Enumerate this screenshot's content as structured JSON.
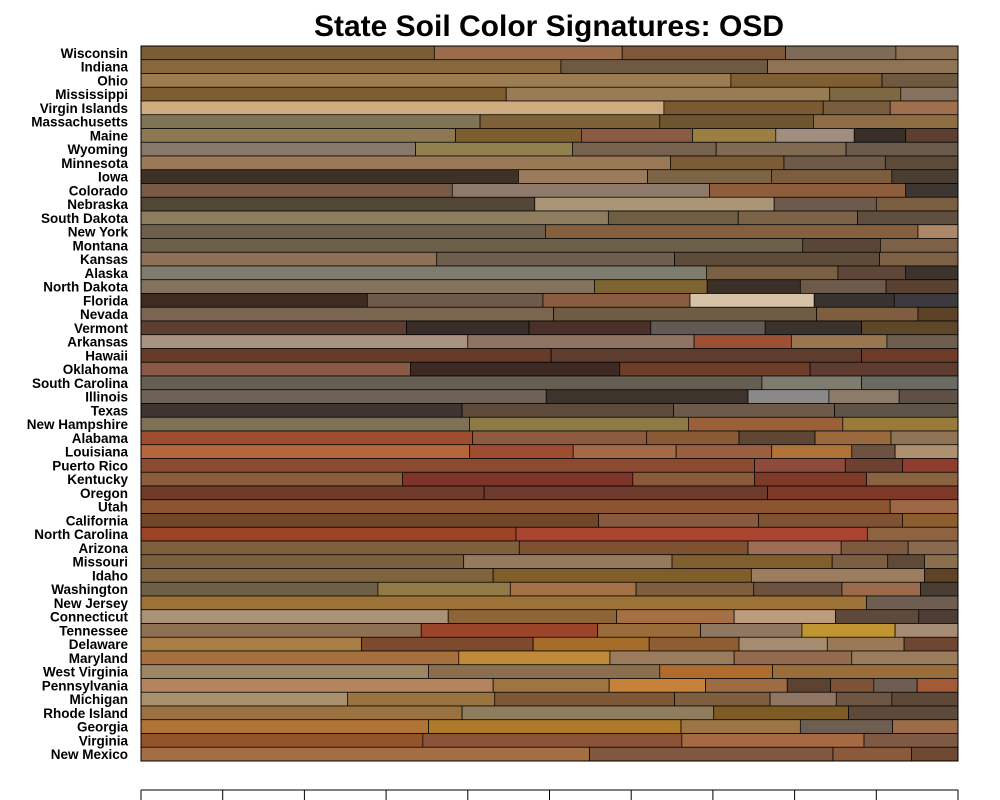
{
  "chart_data": {
    "type": "bar",
    "orientation": "horizontal",
    "stacked": true,
    "title": "State Soil Color Signatures: OSD",
    "xlabel": "",
    "ylabel": "",
    "xlim": [
      0,
      1
    ],
    "grid": false,
    "legend": "none",
    "rows": [
      {
        "label": "Wisconsin",
        "segments": [
          [
            0.359,
            "#7a5c35"
          ],
          [
            0.23,
            "#9a6c4c"
          ],
          [
            0.2,
            "#7e5838"
          ],
          [
            0.135,
            "#7d6b58"
          ],
          [
            0.076,
            "#8c7256"
          ]
        ]
      },
      {
        "label": "Indiana",
        "segments": [
          [
            0.514,
            "#86683c"
          ],
          [
            0.253,
            "#6e5a42"
          ],
          [
            0.233,
            "#8e7354"
          ]
        ]
      },
      {
        "label": "Ohio",
        "segments": [
          [
            0.722,
            "#9c7c50"
          ],
          [
            0.185,
            "#7e5e32"
          ],
          [
            0.093,
            "#6e5a40"
          ]
        ]
      },
      {
        "label": "Mississippi",
        "segments": [
          [
            0.447,
            "#7e5e30"
          ],
          [
            0.396,
            "#9a7c54"
          ],
          [
            0.087,
            "#7e6844"
          ],
          [
            0.07,
            "#84725e"
          ]
        ]
      },
      {
        "label": "Virgin Islands",
        "segments": [
          [
            0.64,
            "#cfac80"
          ],
          [
            0.195,
            "#7c5a30"
          ],
          [
            0.082,
            "#7a5c3e"
          ],
          [
            0.083,
            "#a0704e"
          ]
        ]
      },
      {
        "label": "Massachusetts",
        "segments": [
          [
            0.415,
            "#7e7456"
          ],
          [
            0.22,
            "#7e6136"
          ],
          [
            0.188,
            "#6e5530"
          ],
          [
            0.177,
            "#8e6c44"
          ]
        ]
      },
      {
        "label": "Maine",
        "segments": [
          [
            0.385,
            "#8e7854"
          ],
          [
            0.154,
            "#7e5e2e"
          ],
          [
            0.136,
            "#8a5a42"
          ],
          [
            0.102,
            "#9c7e42"
          ],
          [
            0.096,
            "#a28e80"
          ],
          [
            0.063,
            "#3a2e28"
          ],
          [
            0.064,
            "#5e3e2e"
          ]
        ]
      },
      {
        "label": "Wyoming",
        "segments": [
          [
            0.336,
            "#86786a"
          ],
          [
            0.192,
            "#92804e"
          ],
          [
            0.176,
            "#76624e"
          ],
          [
            0.159,
            "#806a52"
          ],
          [
            0.137,
            "#6a5a4a"
          ]
        ]
      },
      {
        "label": "Minnesota",
        "segments": [
          [
            0.648,
            "#9a7a56"
          ],
          [
            0.139,
            "#7c5c36"
          ],
          [
            0.124,
            "#6e5a46"
          ],
          [
            0.089,
            "#5e4a3a"
          ]
        ]
      },
      {
        "label": "Iowa",
        "segments": [
          [
            0.462,
            "#3e3226"
          ],
          [
            0.158,
            "#9a7c5c"
          ],
          [
            0.152,
            "#7c6446"
          ],
          [
            0.147,
            "#7c5e3e"
          ],
          [
            0.081,
            "#4a3e32"
          ]
        ]
      },
      {
        "label": "Colorado",
        "segments": [
          [
            0.381,
            "#7a5a44"
          ],
          [
            0.315,
            "#8e7a6a"
          ],
          [
            0.24,
            "#8e5e3c"
          ],
          [
            0.064,
            "#3e3632"
          ]
        ]
      },
      {
        "label": "Nebraska",
        "segments": [
          [
            0.482,
            "#524636"
          ],
          [
            0.293,
            "#ac9476"
          ],
          [
            0.125,
            "#6e5a4c"
          ],
          [
            0.1,
            "#7a5e42"
          ]
        ]
      },
      {
        "label": "South Dakota",
        "segments": [
          [
            0.572,
            "#8e7c5e"
          ],
          [
            0.159,
            "#6e5e42"
          ],
          [
            0.146,
            "#7c6246"
          ],
          [
            0.123,
            "#5e4e3e"
          ]
        ]
      },
      {
        "label": "New York",
        "segments": [
          [
            0.495,
            "#6e5e4c"
          ],
          [
            0.456,
            "#84603e"
          ],
          [
            0.049,
            "#ac8868"
          ]
        ]
      },
      {
        "label": "Montana",
        "segments": [
          [
            0.81,
            "#6c6048"
          ],
          [
            0.095,
            "#5a4636"
          ],
          [
            0.095,
            "#7c6048"
          ]
        ]
      },
      {
        "label": "Kansas",
        "segments": [
          [
            0.362,
            "#8e7054"
          ],
          [
            0.291,
            "#6e5e4e"
          ],
          [
            0.251,
            "#5e4c3a"
          ],
          [
            0.096,
            "#7e6044"
          ]
        ]
      },
      {
        "label": "Alaska",
        "segments": [
          [
            0.692,
            "#7e7c6e"
          ],
          [
            0.161,
            "#7a6042"
          ],
          [
            0.083,
            "#5e4638"
          ],
          [
            0.064,
            "#3e322c"
          ]
        ]
      },
      {
        "label": "North Dakota",
        "segments": [
          [
            0.555,
            "#82725e"
          ],
          [
            0.138,
            "#7e6432"
          ],
          [
            0.114,
            "#3a3028"
          ],
          [
            0.105,
            "#6e5a4a"
          ],
          [
            0.088,
            "#5a4232"
          ]
        ]
      },
      {
        "label": "Florida",
        "segments": [
          [
            0.277,
            "#3e2c22"
          ],
          [
            0.215,
            "#6e5a4a"
          ],
          [
            0.18,
            "#8a5c40"
          ],
          [
            0.152,
            "#d6c2a6"
          ],
          [
            0.098,
            "#3a3230"
          ],
          [
            0.078,
            "#3c3a3e"
          ]
        ]
      },
      {
        "label": "Nevada",
        "segments": [
          [
            0.505,
            "#7a6650"
          ],
          [
            0.322,
            "#6e5c44"
          ],
          [
            0.124,
            "#7e5e3e"
          ],
          [
            0.049,
            "#5e4228"
          ]
        ]
      },
      {
        "label": "Vermont",
        "segments": [
          [
            0.325,
            "#5e3e30"
          ],
          [
            0.15,
            "#3a2c26"
          ],
          [
            0.149,
            "#4a3028"
          ],
          [
            0.14,
            "#625a52"
          ],
          [
            0.118,
            "#3a322c"
          ],
          [
            0.118,
            "#5e4628"
          ]
        ]
      },
      {
        "label": "Arkansas",
        "segments": [
          [
            0.4,
            "#a89280"
          ],
          [
            0.277,
            "#8e7462"
          ],
          [
            0.119,
            "#9c5034"
          ],
          [
            0.117,
            "#9a7650"
          ],
          [
            0.087,
            "#6e5e4e"
          ]
        ]
      },
      {
        "label": "Hawaii",
        "segments": [
          [
            0.502,
            "#663c28"
          ],
          [
            0.38,
            "#5e3c2e"
          ],
          [
            0.118,
            "#6e3c26"
          ]
        ]
      },
      {
        "label": "Oklahoma",
        "segments": [
          [
            0.33,
            "#8a5a46"
          ],
          [
            0.256,
            "#3e2a22"
          ],
          [
            0.233,
            "#6e3e28"
          ],
          [
            0.181,
            "#5e3c30"
          ]
        ]
      },
      {
        "label": "South Carolina",
        "segments": [
          [
            0.76,
            "#665e52"
          ],
          [
            0.122,
            "#7e7c6e"
          ],
          [
            0.118,
            "#6a6a62"
          ]
        ]
      },
      {
        "label": "Illinois",
        "segments": [
          [
            0.496,
            "#6e6258"
          ],
          [
            0.247,
            "#3e342e"
          ],
          [
            0.099,
            "#8a8888"
          ],
          [
            0.086,
            "#8e7c6a"
          ],
          [
            0.072,
            "#5e5046"
          ]
        ]
      },
      {
        "label": "Texas",
        "segments": [
          [
            0.393,
            "#3e3430"
          ],
          [
            0.259,
            "#5e4a3a"
          ],
          [
            0.197,
            "#6e5a4a"
          ],
          [
            0.151,
            "#5e5448"
          ]
        ]
      },
      {
        "label": "New Hampshire",
        "segments": [
          [
            0.402,
            "#7e7256"
          ],
          [
            0.268,
            "#8e7a46"
          ],
          [
            0.189,
            "#9a603a"
          ],
          [
            0.141,
            "#9a7a3a"
          ]
        ]
      },
      {
        "label": "Alabama",
        "segments": [
          [
            0.406,
            "#9c4e2e"
          ],
          [
            0.213,
            "#8e5a3e"
          ],
          [
            0.113,
            "#8a5a34"
          ],
          [
            0.093,
            "#5e4632"
          ],
          [
            0.093,
            "#9a6a3e"
          ],
          [
            0.082,
            "#8e7454"
          ]
        ]
      },
      {
        "label": "Louisiana",
        "segments": [
          [
            0.402,
            "#b4683a"
          ],
          [
            0.127,
            "#9e4e2e"
          ],
          [
            0.126,
            "#a46a46"
          ],
          [
            0.117,
            "#9a5e40"
          ],
          [
            0.098,
            "#b07236"
          ],
          [
            0.053,
            "#6e5240"
          ],
          [
            0.077,
            "#ac9070"
          ]
        ]
      },
      {
        "label": "Puerto Rico",
        "segments": [
          [
            0.751,
            "#8c4a30"
          ],
          [
            0.111,
            "#8e4a3a"
          ],
          [
            0.07,
            "#6e4030"
          ],
          [
            0.068,
            "#8e3c2e"
          ]
        ]
      },
      {
        "label": "Kentucky",
        "segments": [
          [
            0.32,
            "#8a5e3c"
          ],
          [
            0.282,
            "#7e3428"
          ],
          [
            0.149,
            "#8a5a3a"
          ],
          [
            0.137,
            "#7e3a26"
          ],
          [
            0.112,
            "#8a6240"
          ]
        ]
      },
      {
        "label": "Oregon",
        "segments": [
          [
            0.42,
            "#6e3c28"
          ],
          [
            0.347,
            "#6e3a2e"
          ],
          [
            0.233,
            "#7e3828"
          ]
        ]
      },
      {
        "label": "Utah",
        "segments": [
          [
            0.917,
            "#8c5430"
          ],
          [
            0.083,
            "#9e6846"
          ]
        ]
      },
      {
        "label": "California",
        "segments": [
          [
            0.56,
            "#704828"
          ],
          [
            0.196,
            "#8a5a40"
          ],
          [
            0.176,
            "#7e5232"
          ],
          [
            0.068,
            "#8c5e2e"
          ]
        ]
      },
      {
        "label": "North Carolina",
        "segments": [
          [
            0.459,
            "#9c4426"
          ],
          [
            0.43,
            "#aa4430"
          ],
          [
            0.111,
            "#8e6440"
          ]
        ]
      },
      {
        "label": "Arizona",
        "segments": [
          [
            0.463,
            "#80603c"
          ],
          [
            0.28,
            "#7e5230"
          ],
          [
            0.114,
            "#9c6e56"
          ],
          [
            0.082,
            "#7e583e"
          ],
          [
            0.061,
            "#8a6a4e"
          ]
        ]
      },
      {
        "label": "Missouri",
        "segments": [
          [
            0.395,
            "#7a5e3e"
          ],
          [
            0.255,
            "#967a5e"
          ],
          [
            0.196,
            "#805e2e"
          ],
          [
            0.068,
            "#7e5e40"
          ],
          [
            0.045,
            "#5e4a36"
          ],
          [
            0.041,
            "#8a6e4e"
          ]
        ]
      },
      {
        "label": "Idaho",
        "segments": [
          [
            0.431,
            "#80643e"
          ],
          [
            0.316,
            "#805e2a"
          ],
          [
            0.212,
            "#9c7e5e"
          ],
          [
            0.041,
            "#5e4424"
          ]
        ]
      },
      {
        "label": "Washington",
        "segments": [
          [
            0.29,
            "#6e6046"
          ],
          [
            0.162,
            "#927a46"
          ],
          [
            0.154,
            "#a47046"
          ],
          [
            0.144,
            "#7e5e3e"
          ],
          [
            0.108,
            "#6e5240"
          ],
          [
            0.096,
            "#9a6a4a"
          ],
          [
            0.046,
            "#4a3e34"
          ]
        ]
      },
      {
        "label": "New Jersey",
        "segments": [
          [
            0.888,
            "#9c7236"
          ],
          [
            0.112,
            "#6e5e52"
          ]
        ]
      },
      {
        "label": "Connecticut",
        "segments": [
          [
            0.376,
            "#a89278"
          ],
          [
            0.206,
            "#8e6436"
          ],
          [
            0.144,
            "#a67044"
          ],
          [
            0.124,
            "#bc9c7e"
          ],
          [
            0.102,
            "#5e4a3a"
          ],
          [
            0.048,
            "#4e3e36"
          ]
        ]
      },
      {
        "label": "Tennessee",
        "segments": [
          [
            0.343,
            "#8e7052"
          ],
          [
            0.216,
            "#9c442a"
          ],
          [
            0.126,
            "#9a6c3a"
          ],
          [
            0.124,
            "#8e7862"
          ],
          [
            0.114,
            "#c09430"
          ],
          [
            0.077,
            "#a48c74"
          ]
        ]
      },
      {
        "label": "Delaware",
        "segments": [
          [
            0.27,
            "#a67e46"
          ],
          [
            0.21,
            "#7e4a2e"
          ],
          [
            0.142,
            "#a66c2a"
          ],
          [
            0.11,
            "#8e5e32"
          ],
          [
            0.108,
            "#a68c6e"
          ],
          [
            0.094,
            "#9a7a56"
          ],
          [
            0.066,
            "#6e4632"
          ]
        ]
      },
      {
        "label": "Maryland",
        "segments": [
          [
            0.389,
            "#a6703e"
          ],
          [
            0.185,
            "#c08a3a"
          ],
          [
            0.152,
            "#9a7c5c"
          ],
          [
            0.144,
            "#946a4e"
          ],
          [
            0.13,
            "#9a7c5c"
          ]
        ]
      },
      {
        "label": "West Virginia",
        "segments": [
          [
            0.352,
            "#9e8664"
          ],
          [
            0.283,
            "#8a6e4e"
          ],
          [
            0.138,
            "#b06c2e"
          ],
          [
            0.227,
            "#9a6e3a"
          ]
        ]
      },
      {
        "label": "Pennsylvania",
        "segments": [
          [
            0.431,
            "#b4845e"
          ],
          [
            0.142,
            "#9e7440"
          ],
          [
            0.118,
            "#c6823a"
          ],
          [
            0.1,
            "#9e6c42"
          ],
          [
            0.053,
            "#5e4230"
          ],
          [
            0.053,
            "#7e5236"
          ],
          [
            0.053,
            "#6e5e52"
          ],
          [
            0.05,
            "#a45a36"
          ]
        ]
      },
      {
        "label": "Michigan",
        "segments": [
          [
            0.253,
            "#a8906c"
          ],
          [
            0.18,
            "#9a7440"
          ],
          [
            0.22,
            "#7e5834"
          ],
          [
            0.117,
            "#7e5e3e"
          ],
          [
            0.081,
            "#8e7662"
          ],
          [
            0.068,
            "#6e5642"
          ],
          [
            0.081,
            "#5e4838"
          ]
        ]
      },
      {
        "label": "Rhode Island",
        "segments": [
          [
            0.393,
            "#9a7240"
          ],
          [
            0.308,
            "#8e7e5e"
          ],
          [
            0.165,
            "#7e5a24"
          ],
          [
            0.134,
            "#5e4a3a"
          ]
        ]
      },
      {
        "label": "Georgia",
        "segments": [
          [
            0.352,
            "#b07436"
          ],
          [
            0.309,
            "#ae7a2a"
          ],
          [
            0.146,
            "#9c7446"
          ],
          [
            0.113,
            "#6e5e52"
          ],
          [
            0.08,
            "#9a6c48"
          ]
        ]
      },
      {
        "label": "Virginia",
        "segments": [
          [
            0.345,
            "#94542a"
          ],
          [
            0.317,
            "#8a5236"
          ],
          [
            0.223,
            "#a66a42"
          ],
          [
            0.115,
            "#7e5a44"
          ]
        ]
      },
      {
        "label": "New Mexico",
        "segments": [
          [
            0.549,
            "#a46e44"
          ],
          [
            0.298,
            "#7e5840"
          ],
          [
            0.096,
            "#8a5a3a"
          ],
          [
            0.057,
            "#6e4a30"
          ]
        ]
      }
    ]
  }
}
